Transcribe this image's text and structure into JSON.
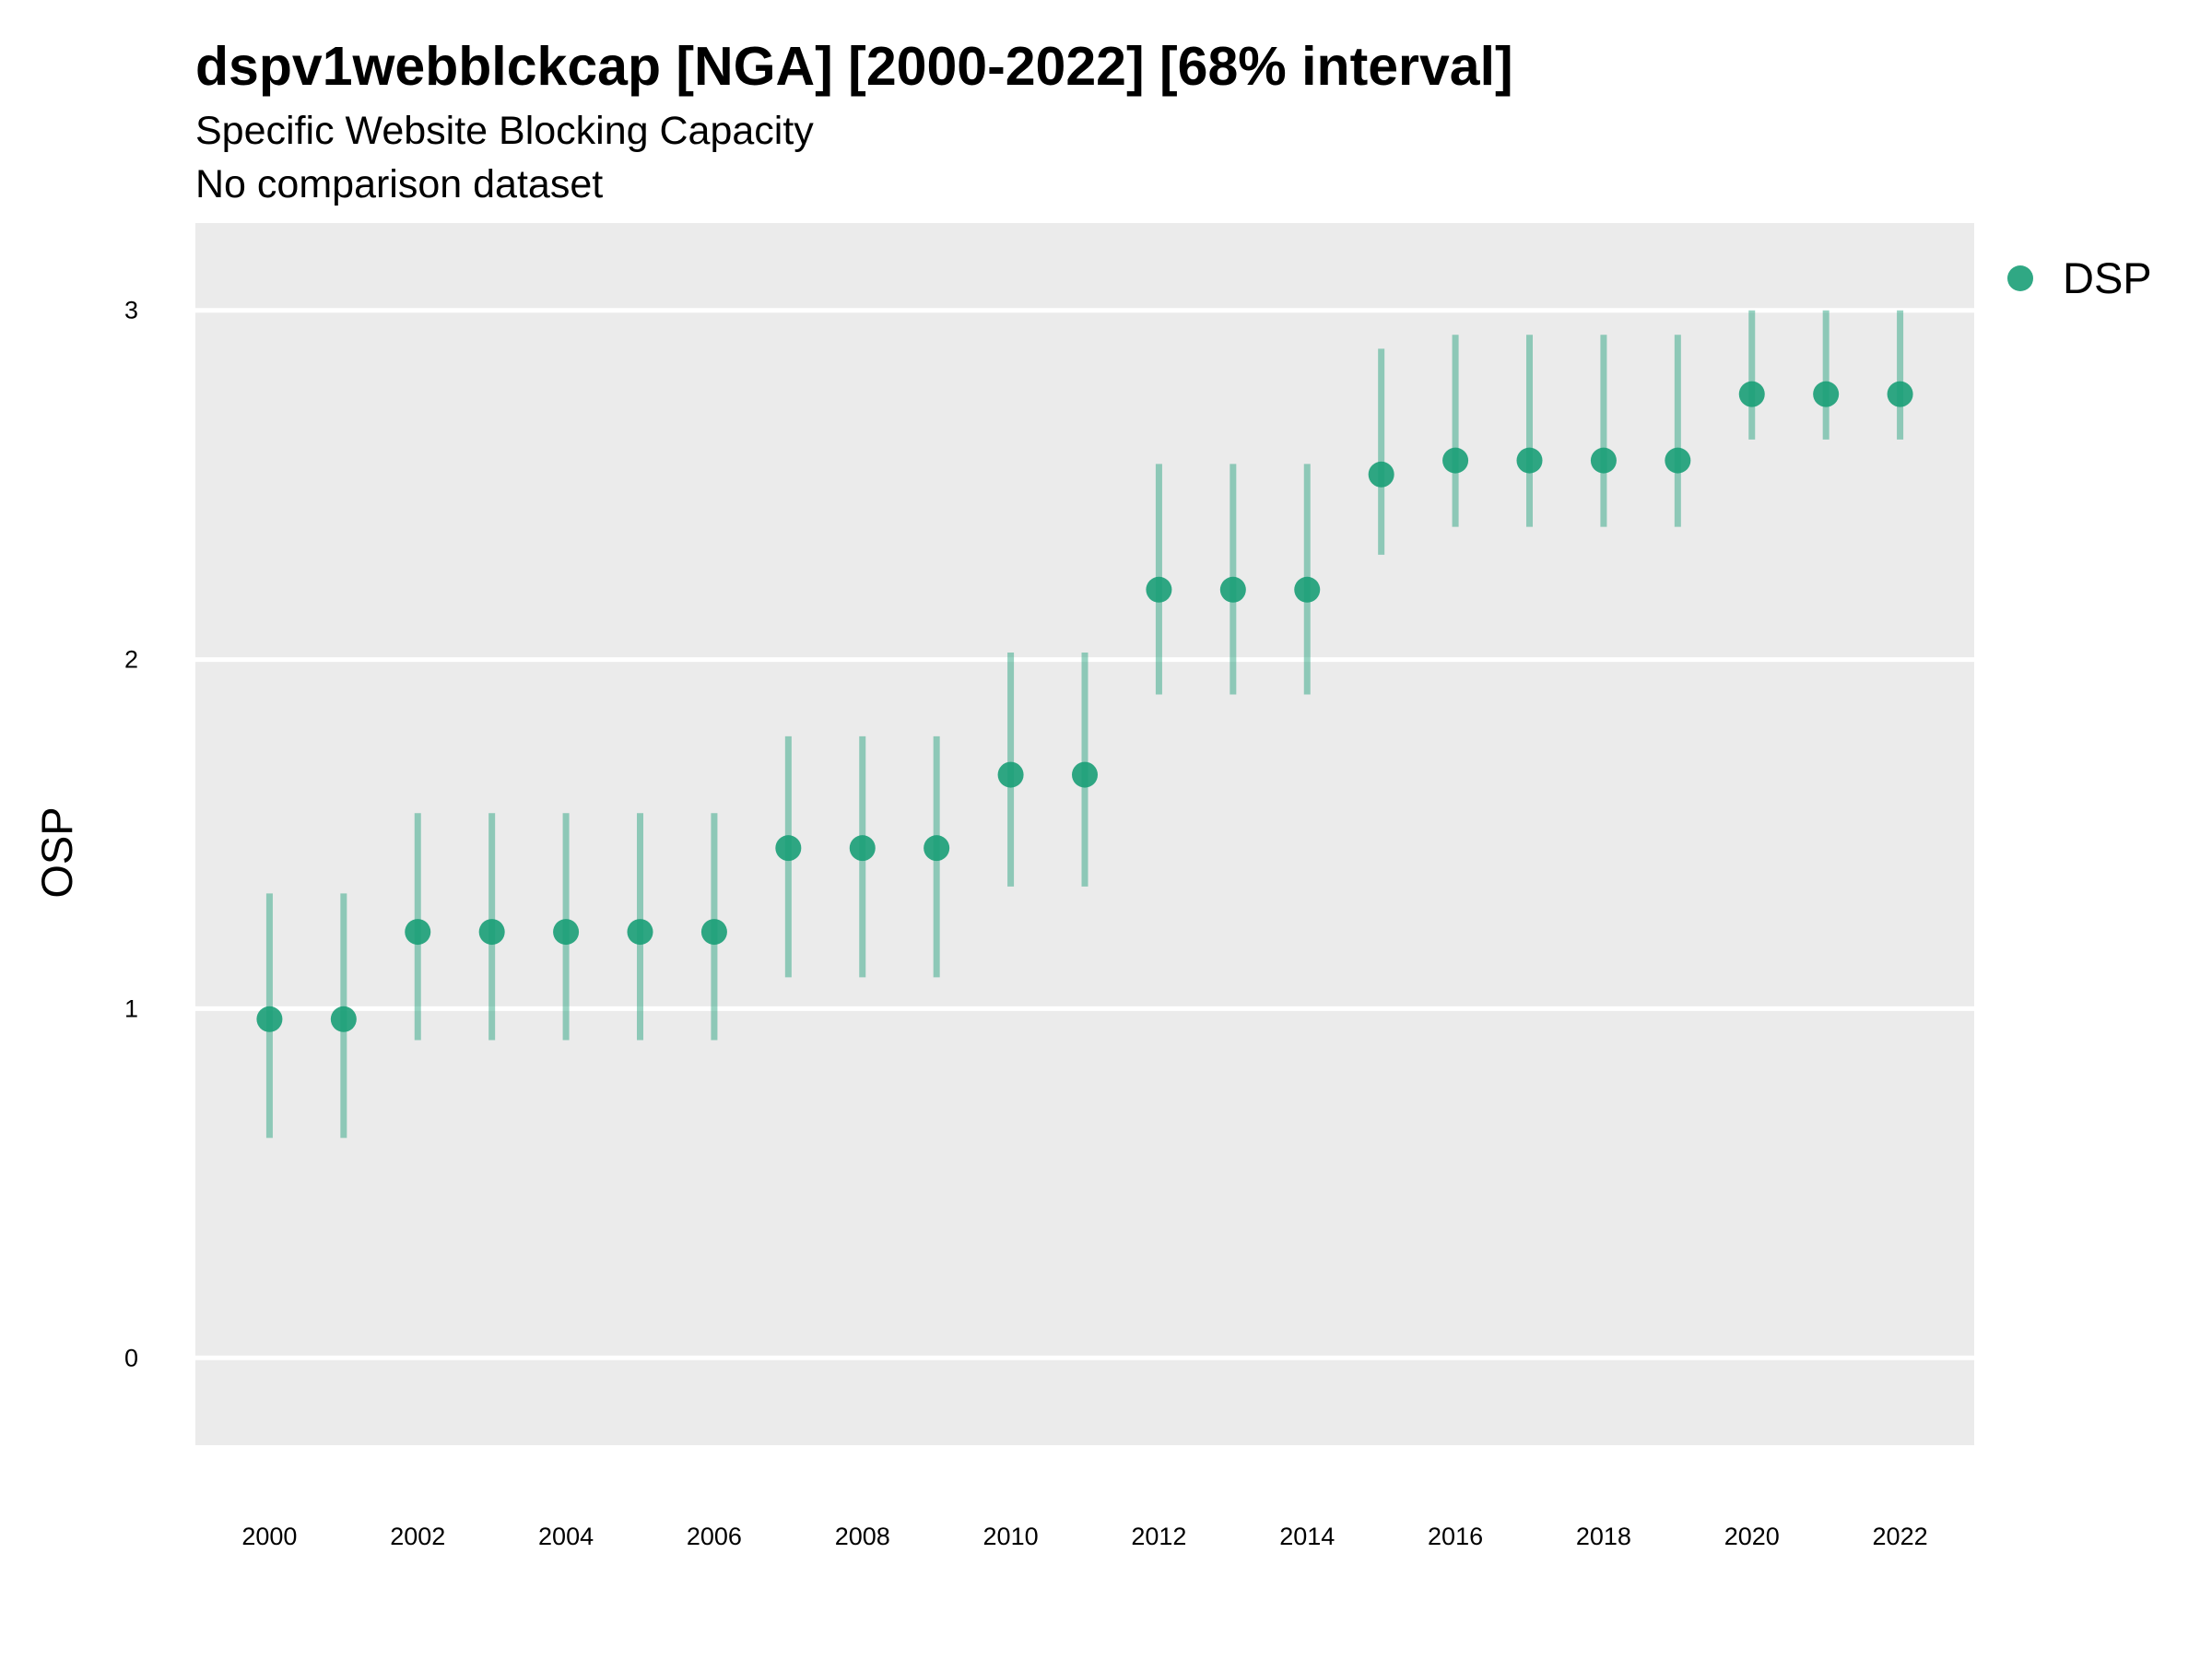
{
  "chart_data": {
    "type": "scatter",
    "title": "dspv1webblckcap [NGA] [2000-2022] [68% interval]",
    "subtitle": "Specific Website Blocking Capacity",
    "caption": "No comparison dataset",
    "xlabel": "",
    "ylabel": "OSP",
    "xlim": [
      1999,
      2023
    ],
    "ylim": [
      -0.25,
      3.25
    ],
    "x_ticks": [
      2000,
      2002,
      2004,
      2006,
      2008,
      2010,
      2012,
      2014,
      2016,
      2018,
      2020,
      2022
    ],
    "y_ticks": [
      0,
      1,
      2,
      3
    ],
    "grid": true,
    "legend_position": "top-right",
    "series": [
      {
        "name": "DSP",
        "color": "#1a9e77",
        "x": [
          2000,
          2001,
          2002,
          2003,
          2004,
          2005,
          2006,
          2007,
          2008,
          2009,
          2010,
          2011,
          2012,
          2013,
          2014,
          2015,
          2016,
          2017,
          2018,
          2019,
          2020,
          2021,
          2022
        ],
        "y": [
          0.97,
          0.97,
          1.22,
          1.22,
          1.22,
          1.22,
          1.22,
          1.46,
          1.46,
          1.46,
          1.67,
          1.67,
          2.2,
          2.2,
          2.2,
          2.53,
          2.57,
          2.57,
          2.57,
          2.57,
          2.76,
          2.76,
          2.76
        ],
        "lower": [
          0.63,
          0.63,
          0.91,
          0.91,
          0.91,
          0.91,
          0.91,
          1.09,
          1.09,
          1.09,
          1.35,
          1.35,
          1.9,
          1.9,
          1.9,
          2.3,
          2.38,
          2.38,
          2.38,
          2.38,
          2.63,
          2.63,
          2.63
        ],
        "upper": [
          1.33,
          1.33,
          1.56,
          1.56,
          1.56,
          1.56,
          1.56,
          1.78,
          1.78,
          1.78,
          2.02,
          2.02,
          2.56,
          2.56,
          2.56,
          2.89,
          2.93,
          2.93,
          2.93,
          2.93,
          3.0,
          3.0,
          3.0
        ]
      }
    ]
  }
}
